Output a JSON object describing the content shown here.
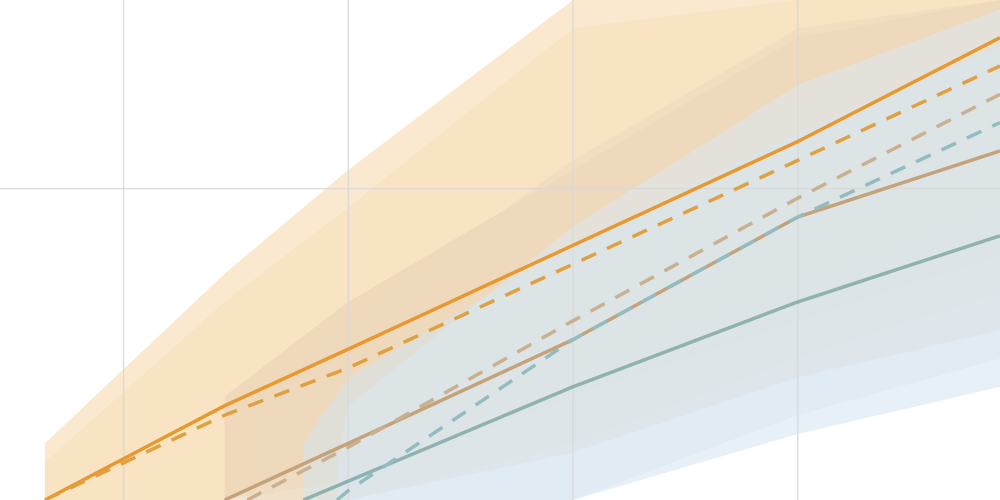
{
  "chart_data": {
    "type": "area",
    "title": "",
    "xlabel": "",
    "ylabel": "",
    "xlim": [
      0,
      4.45
    ],
    "ylim": [
      0,
      2.65
    ],
    "grid": true,
    "x_gridlines": [
      0.55,
      1.55,
      2.55,
      3.55
    ],
    "y_gridlines": [
      1.65
    ],
    "x_ticks": [],
    "y_ticks": [],
    "legend": "none",
    "series": [
      {
        "color": "#e8982e",
        "style": "solid",
        "x": [
          0.2,
          1.0,
          1.55,
          2.55,
          3.55,
          4.45
        ],
        "y": [
          0.0,
          0.5,
          0.8,
          1.35,
          1.9,
          2.45
        ],
        "band_lower": [
          0.0,
          0.0,
          0.25,
          0.7,
          1.15,
          1.55
        ],
        "band_upper": [
          0.3,
          1.2,
          1.75,
          2.65,
          2.65,
          2.65
        ],
        "band_color": "#f8d7a8"
      },
      {
        "color": "#e0a040",
        "style": "dashed",
        "x": [
          0.2,
          1.0,
          1.55,
          2.55,
          3.55,
          4.45
        ],
        "y": [
          0.0,
          0.45,
          0.7,
          1.25,
          1.8,
          2.3
        ],
        "band_lower": [
          0.0,
          0.0,
          0.1,
          0.55,
          0.95,
          1.3
        ],
        "band_upper": [
          0.2,
          1.05,
          1.55,
          2.5,
          2.65,
          2.65
        ],
        "band_color": "#f5dfb8"
      },
      {
        "color": "#c4a27a",
        "style": "solid",
        "x": [
          1.0,
          1.55,
          2.55,
          3.55,
          4.45
        ],
        "y": [
          0.0,
          0.3,
          0.85,
          1.5,
          1.85
        ],
        "band_lower": [
          0.0,
          0.0,
          0.25,
          0.65,
          0.9
        ],
        "band_upper": [
          0.55,
          1.05,
          1.75,
          2.45,
          2.65
        ],
        "band_color": "#e9d2b4"
      },
      {
        "color": "#c9b090",
        "style": "dashed",
        "x": [
          1.1,
          1.55,
          2.55,
          3.55,
          4.45
        ],
        "y": [
          0.0,
          0.28,
          0.95,
          1.6,
          2.15
        ],
        "band_lower": [
          0.0,
          0.0,
          0.3,
          0.75,
          1.1
        ],
        "band_upper": [
          0.5,
          0.95,
          1.8,
          2.5,
          2.65
        ],
        "band_color": "#ecd9c0"
      },
      {
        "color": "#8fb2b0",
        "style": "solid",
        "x": [
          1.35,
          1.55,
          2.55,
          3.55,
          4.45
        ],
        "y": [
          0.0,
          0.1,
          0.6,
          1.05,
          1.4
        ],
        "band_lower": [
          0.0,
          0.0,
          0.0,
          0.35,
          0.6
        ],
        "band_upper": [
          0.3,
          0.65,
          1.35,
          1.95,
          2.4
        ],
        "band_color": "#d3e3ee"
      },
      {
        "color": "#92bcc0",
        "style": "dashed",
        "x": [
          1.5,
          1.55,
          2.55,
          3.55,
          4.45
        ],
        "y": [
          0.0,
          0.05,
          0.85,
          1.5,
          2.0
        ],
        "band_lower": [
          0.0,
          0.0,
          0.0,
          0.45,
          0.75
        ],
        "band_upper": [
          0.2,
          0.5,
          1.45,
          2.2,
          2.6
        ],
        "band_color": "#dbe8f2"
      }
    ]
  }
}
